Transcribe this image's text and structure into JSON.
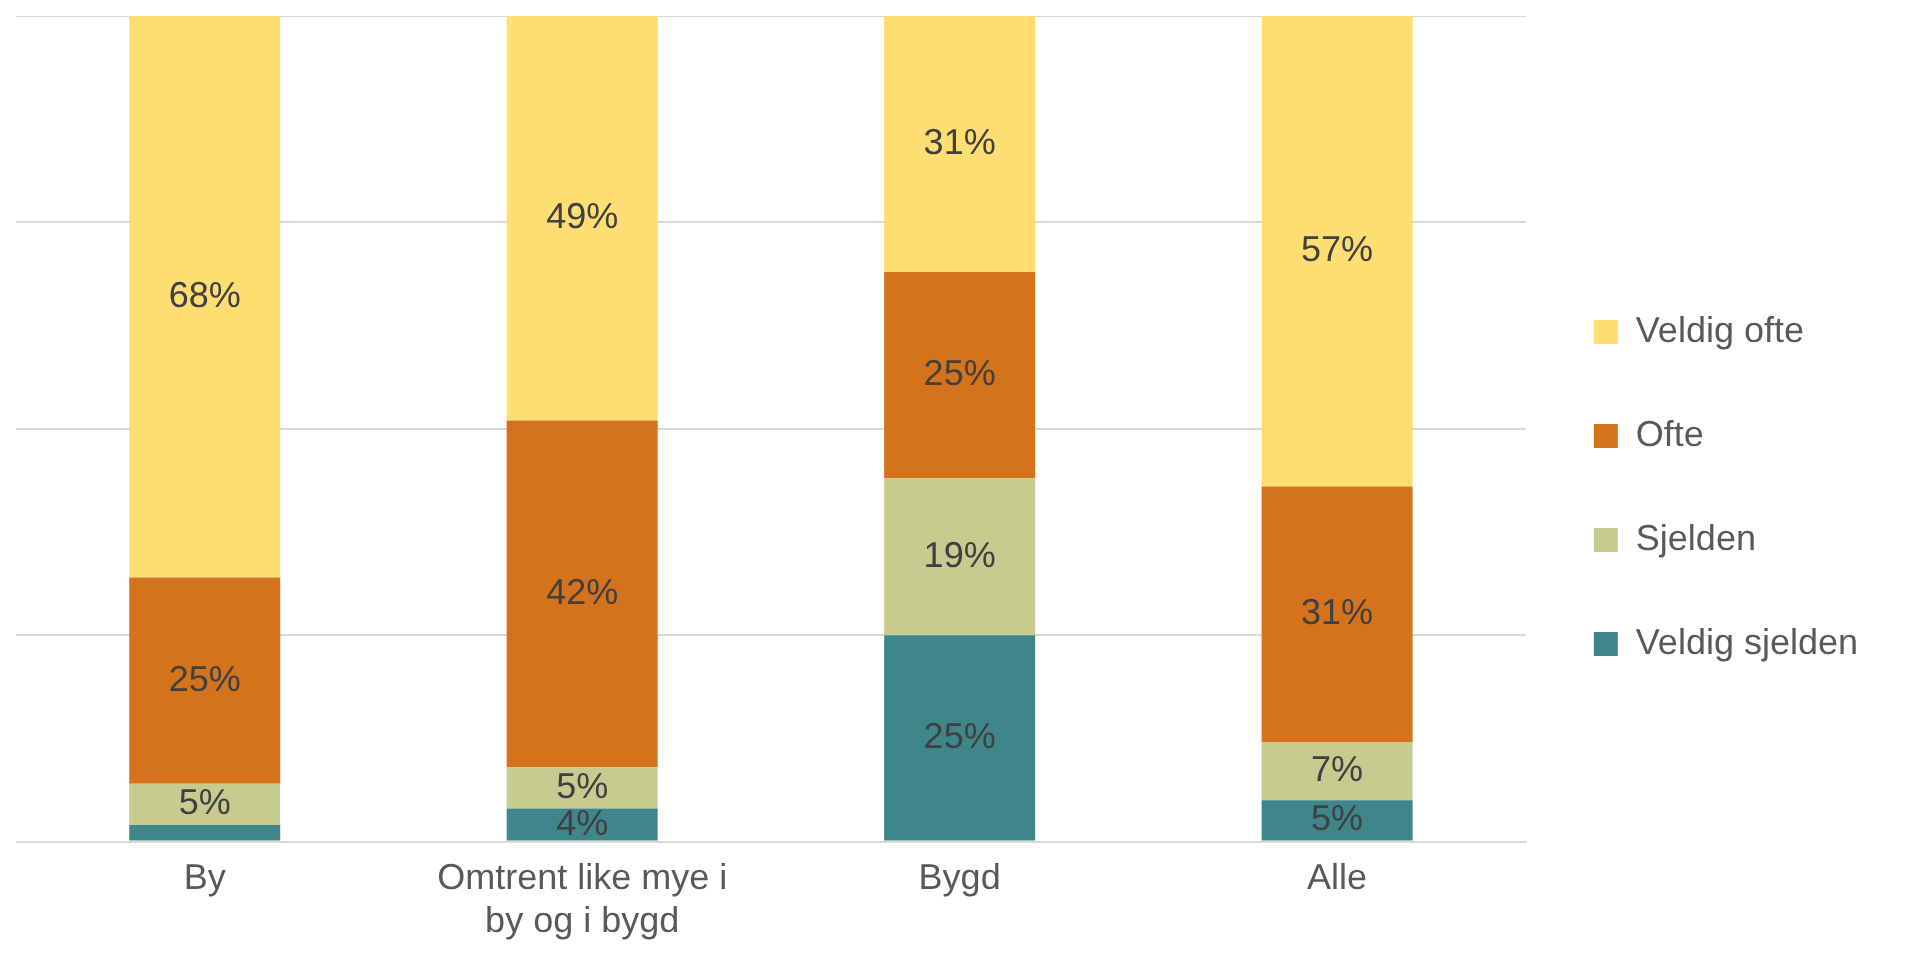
{
  "chart_data": {
    "type": "bar",
    "stacked": true,
    "categories": [
      "By",
      "Omtrent like mye i by og i bygd",
      "Bygd",
      "Alle"
    ],
    "series": [
      {
        "name": "Veldig sjelden",
        "color": "#3f868a",
        "values": [
          2,
          4,
          25,
          5
        ],
        "value_labels": [
          null,
          "4%",
          "25%",
          "5%"
        ]
      },
      {
        "name": "Sjelden",
        "color": "#c6cc8f",
        "values": [
          5,
          5,
          19,
          7
        ],
        "value_labels": [
          "5%",
          "5%",
          "19%",
          "7%"
        ]
      },
      {
        "name": "Ofte",
        "color": "#d5731c",
        "values": [
          25,
          42,
          25,
          31
        ],
        "value_labels": [
          "25%",
          "42%",
          "25%",
          "31%"
        ]
      },
      {
        "name": "Veldig ofte",
        "color": "#fedd73",
        "values": [
          68,
          49,
          31,
          57
        ],
        "value_labels": [
          "68%",
          "49%",
          "31%",
          "57%"
        ]
      }
    ],
    "ylim": [
      0,
      100
    ],
    "yticks": [
      {
        "value": 0,
        "label": null
      },
      {
        "value": 25,
        "label": null
      },
      {
        "value": 50,
        "label": null
      },
      {
        "value": 75,
        "label": null
      },
      {
        "value": 100,
        "label": null
      }
    ],
    "tick_labels": "x",
    "grid": "y",
    "legend": "right"
  }
}
